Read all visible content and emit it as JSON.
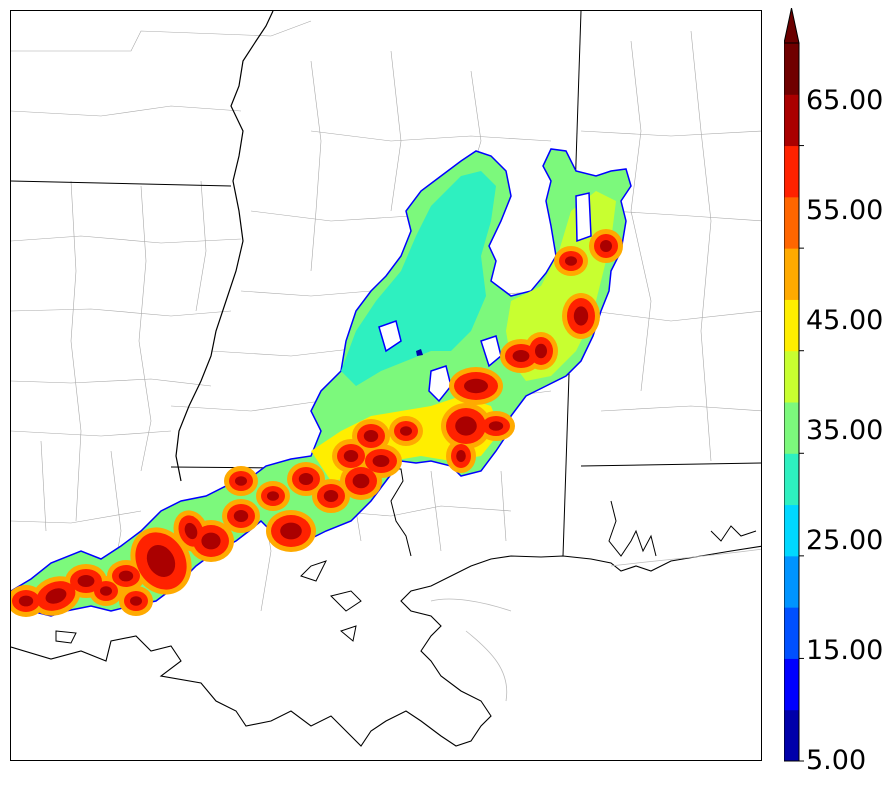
{
  "colorbar": {
    "tick_labels": [
      "5.00",
      "15.00",
      "25.00",
      "35.00",
      "45.00",
      "55.00",
      "65.00"
    ],
    "colors": [
      "#0000aa",
      "#0000ff",
      "#0050ff",
      "#0094ff",
      "#00d8ff",
      "#2ef0c0",
      "#7cf97c",
      "#c8ff30",
      "#ffee00",
      "#ffaa00",
      "#ff6600",
      "#ff2200",
      "#aa0000",
      "#700000"
    ],
    "extend_color": "#6a0000"
  },
  "map": {
    "land_color": "#ffffff",
    "border_color": "#000000",
    "county_color": "#9a9a9a"
  }
}
